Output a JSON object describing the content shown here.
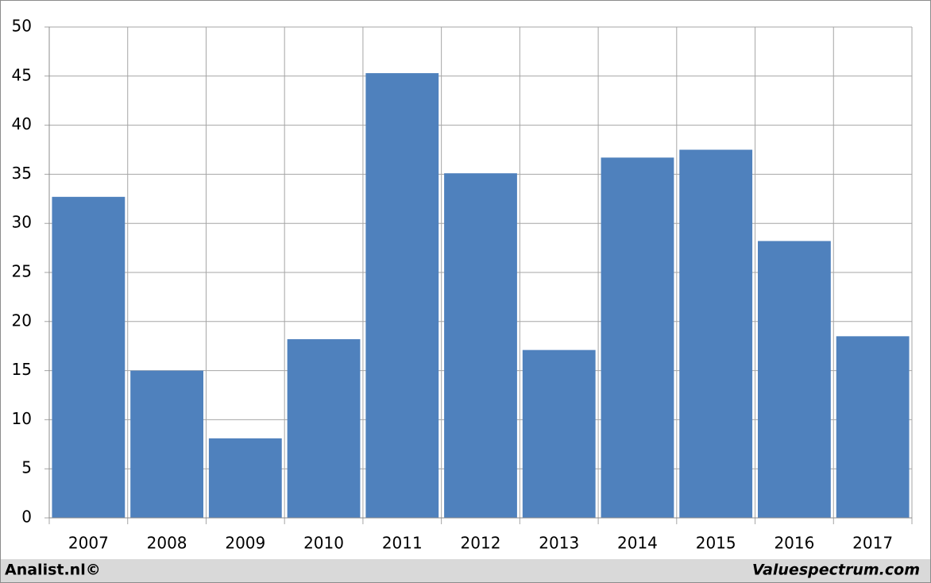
{
  "chart_data": {
    "type": "bar",
    "categories": [
      "2007",
      "2008",
      "2009",
      "2010",
      "2011",
      "2012",
      "2013",
      "2014",
      "2015",
      "2016",
      "2017"
    ],
    "values": [
      32.7,
      15.0,
      8.1,
      18.2,
      45.3,
      35.1,
      17.1,
      36.7,
      37.5,
      28.2,
      18.5
    ],
    "color": "#4f81bd",
    "ylim": [
      0,
      50
    ],
    "yticks": [
      0,
      5,
      10,
      15,
      20,
      25,
      30,
      35,
      40,
      45,
      50
    ],
    "grid": true,
    "source_left": "Analist.nl©",
    "source_right": "Valuespectrum.com"
  }
}
